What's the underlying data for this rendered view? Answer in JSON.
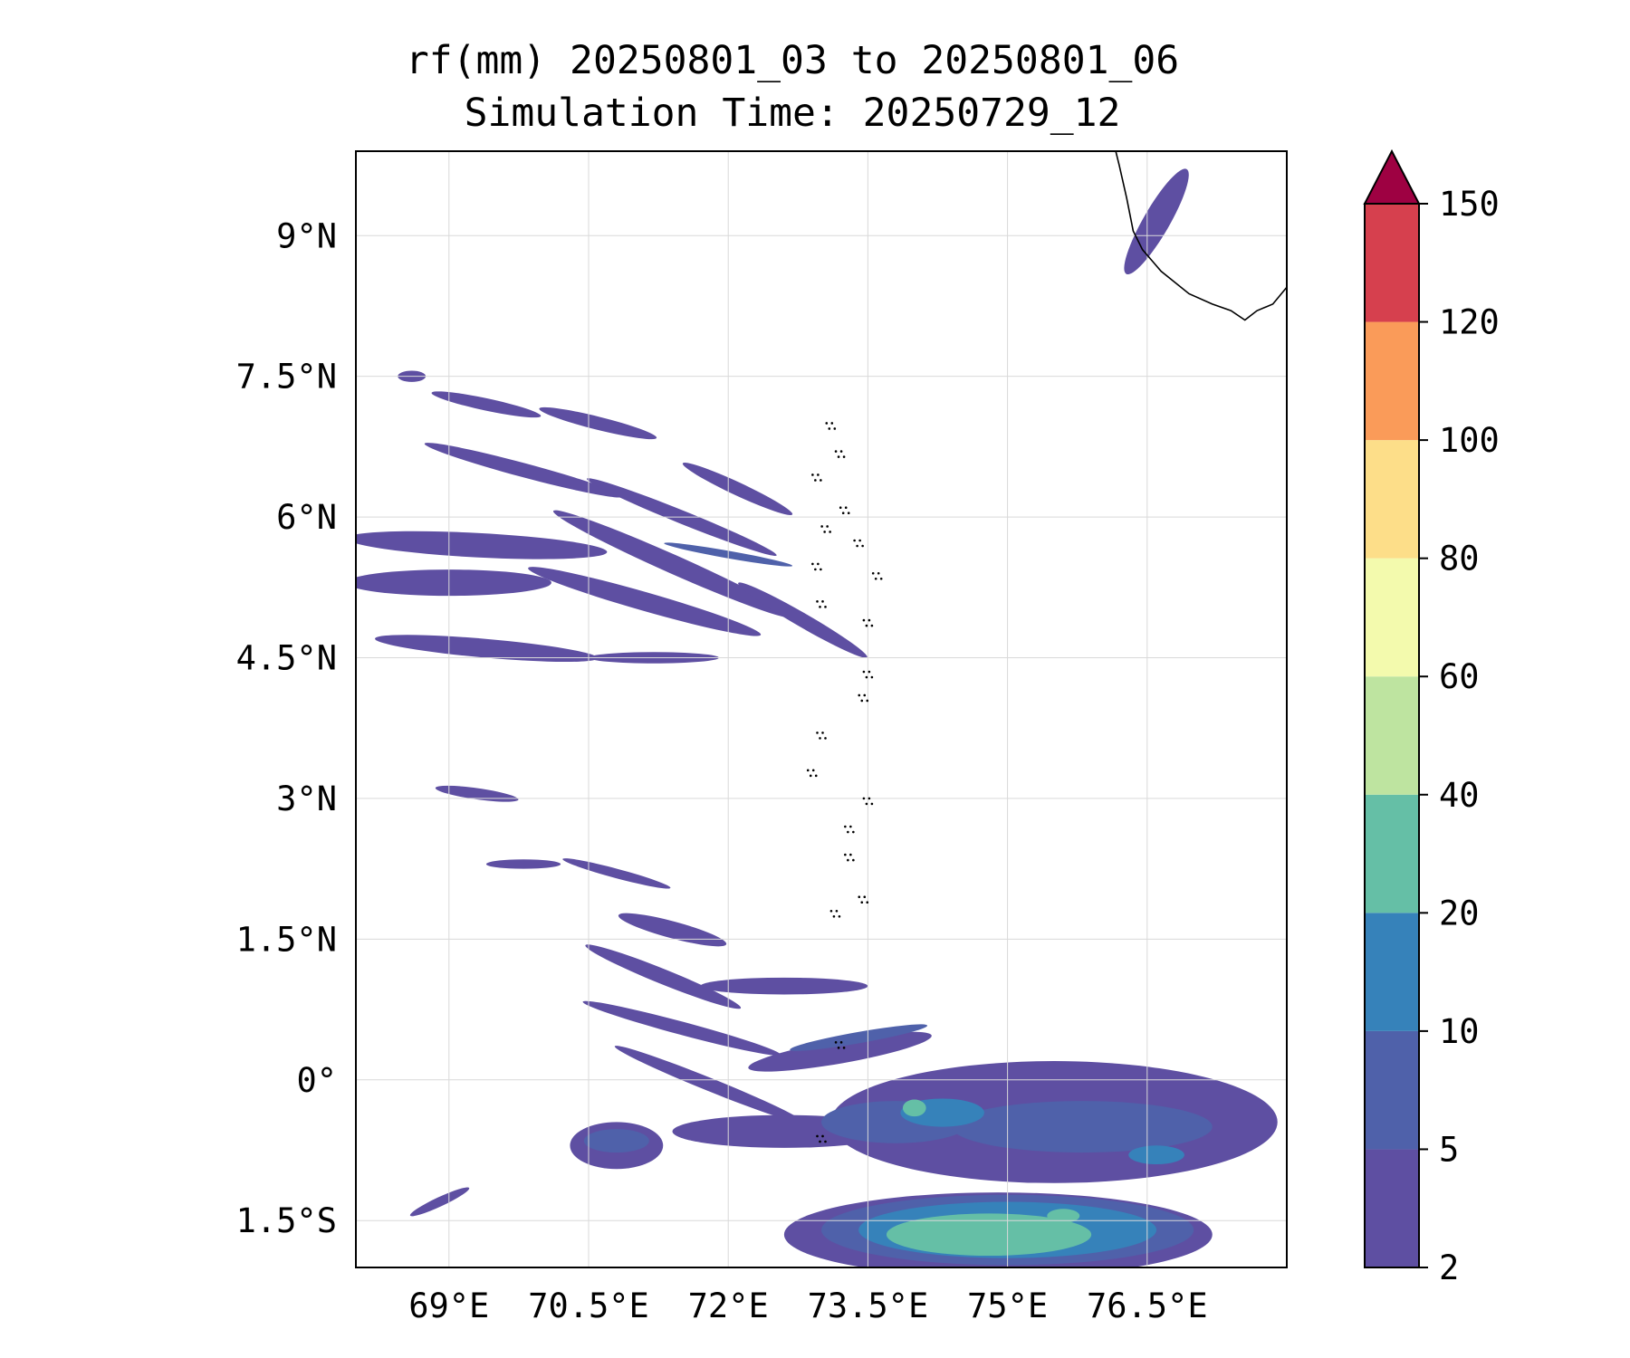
{
  "title": {
    "line1": "rf(mm) 20250801_03 to 20250801_06",
    "line2": "Simulation Time: 20250729_12"
  },
  "map": {
    "lon_range": [
      68.0,
      78.0
    ],
    "lat_range": [
      -2.0,
      9.9
    ],
    "lon_ticks": [
      {
        "value": 69.0,
        "label": "69°E"
      },
      {
        "value": 70.5,
        "label": "70.5°E"
      },
      {
        "value": 72.0,
        "label": "72°E"
      },
      {
        "value": 73.5,
        "label": "73.5°E"
      },
      {
        "value": 75.0,
        "label": "75°E"
      },
      {
        "value": 76.5,
        "label": "76.5°E"
      }
    ],
    "lat_ticks": [
      {
        "value": 9.0,
        "label": "9°N"
      },
      {
        "value": 7.5,
        "label": "7.5°N"
      },
      {
        "value": 6.0,
        "label": "6°N"
      },
      {
        "value": 4.5,
        "label": "4.5°N"
      },
      {
        "value": 3.0,
        "label": "3°N"
      },
      {
        "value": 1.5,
        "label": "1.5°N"
      },
      {
        "value": 0.0,
        "label": "0°"
      },
      {
        "value": -1.5,
        "label": "1.5°S"
      }
    ],
    "gridlines": true,
    "coastline_color": "#000000",
    "coastline_india": [
      [
        76.15,
        9.95
      ],
      [
        76.2,
        9.75
      ],
      [
        76.28,
        9.4
      ],
      [
        76.35,
        9.05
      ],
      [
        76.45,
        8.85
      ],
      [
        76.65,
        8.62
      ],
      [
        76.95,
        8.38
      ],
      [
        77.2,
        8.27
      ],
      [
        77.4,
        8.2
      ],
      [
        77.55,
        8.1
      ],
      [
        77.68,
        8.2
      ],
      [
        77.85,
        8.27
      ],
      [
        78.0,
        8.45
      ]
    ],
    "maldives_atolls": [
      [
        73.1,
        7.0
      ],
      [
        73.2,
        6.7
      ],
      [
        72.95,
        6.45
      ],
      [
        73.25,
        6.1
      ],
      [
        73.05,
        5.9
      ],
      [
        73.4,
        5.75
      ],
      [
        72.95,
        5.5
      ],
      [
        73.6,
        5.4
      ],
      [
        73.0,
        5.1
      ],
      [
        73.5,
        4.9
      ],
      [
        73.5,
        4.35
      ],
      [
        73.45,
        4.1
      ],
      [
        73.0,
        3.7
      ],
      [
        72.9,
        3.3
      ],
      [
        73.5,
        3.0
      ],
      [
        73.3,
        2.7
      ],
      [
        73.3,
        2.4
      ],
      [
        73.45,
        1.95
      ],
      [
        73.15,
        1.8
      ],
      [
        73.2,
        0.4
      ],
      [
        73.0,
        -0.6
      ]
    ]
  },
  "rain_bands": [
    {
      "level": 2,
      "c": [
        68.6,
        7.5
      ],
      "l": 0.3,
      "w": 0.12,
      "r": 0
    },
    {
      "level": 2,
      "c": [
        69.4,
        7.2
      ],
      "l": 1.2,
      "w": 0.13,
      "r": 12
    },
    {
      "level": 2,
      "c": [
        70.6,
        7.0
      ],
      "l": 1.3,
      "w": 0.14,
      "r": 14
    },
    {
      "level": 2,
      "c": [
        72.1,
        6.3
      ],
      "l": 1.3,
      "w": 0.14,
      "r": 25
    },
    {
      "level": 2,
      "c": [
        69.8,
        6.5
      ],
      "l": 2.2,
      "w": 0.15,
      "r": 15
    },
    {
      "level": 2,
      "c": [
        71.5,
        6.0
      ],
      "l": 2.2,
      "w": 0.14,
      "r": 22
    },
    {
      "level": 2,
      "c": [
        69.3,
        5.7
      ],
      "l": 2.8,
      "w": 0.26,
      "r": 3
    },
    {
      "level": 2,
      "c": [
        71.4,
        5.5
      ],
      "l": 2.8,
      "w": 0.2,
      "r": 24
    },
    {
      "level": 2,
      "c": [
        69.0,
        5.3
      ],
      "l": 2.2,
      "w": 0.28,
      "r": 0
    },
    {
      "level": 2,
      "c": [
        71.1,
        5.1
      ],
      "l": 2.6,
      "w": 0.2,
      "r": 16
    },
    {
      "level": 2,
      "c": [
        72.8,
        4.9
      ],
      "l": 1.6,
      "w": 0.15,
      "r": 30
    },
    {
      "level": 2,
      "c": [
        69.4,
        4.6
      ],
      "l": 2.4,
      "w": 0.2,
      "r": 5
    },
    {
      "level": 2,
      "c": [
        71.2,
        4.5
      ],
      "l": 1.4,
      "w": 0.12,
      "r": 0
    },
    {
      "level": 2,
      "c": [
        69.3,
        3.05
      ],
      "l": 0.9,
      "w": 0.12,
      "r": 8
    },
    {
      "level": 2,
      "c": [
        69.8,
        2.3
      ],
      "l": 0.8,
      "w": 0.1,
      "r": 0
    },
    {
      "level": 2,
      "c": [
        70.8,
        2.2
      ],
      "l": 1.2,
      "w": 0.1,
      "r": 15
    },
    {
      "level": 2,
      "c": [
        71.4,
        1.6
      ],
      "l": 1.2,
      "w": 0.18,
      "r": 15
    },
    {
      "level": 2,
      "c": [
        71.3,
        1.1
      ],
      "l": 1.8,
      "w": 0.16,
      "r": 22
    },
    {
      "level": 2,
      "c": [
        72.6,
        1.0
      ],
      "l": 1.8,
      "w": 0.18,
      "r": 0
    },
    {
      "level": 2,
      "c": [
        71.5,
        0.55
      ],
      "l": 2.2,
      "w": 0.14,
      "r": 15
    },
    {
      "level": 2,
      "c": [
        71.8,
        -0.05
      ],
      "l": 2.2,
      "w": 0.14,
      "r": 22
    },
    {
      "level": 2,
      "c": [
        70.8,
        -0.7
      ],
      "l": 1.0,
      "w": 0.5,
      "r": 0
    },
    {
      "level": 2,
      "c": [
        72.6,
        -0.55
      ],
      "l": 2.4,
      "w": 0.35,
      "r": 0
    },
    {
      "level": 2,
      "c": [
        73.2,
        0.3
      ],
      "l": 2.0,
      "w": 0.25,
      "r": -10
    },
    {
      "level": 2,
      "c": [
        75.5,
        -0.45
      ],
      "l": 4.8,
      "w": 1.3,
      "r": 0
    },
    {
      "level": 2,
      "c": [
        74.9,
        -1.65
      ],
      "l": 4.6,
      "w": 0.9,
      "r": 0
    },
    {
      "level": 2,
      "c": [
        76.6,
        9.15
      ],
      "l": 1.3,
      "w": 0.28,
      "r": -60
    },
    {
      "level": 2,
      "c": [
        68.9,
        -1.3
      ],
      "l": 0.7,
      "w": 0.1,
      "r": -25
    },
    {
      "level": 5,
      "c": [
        72.0,
        5.6
      ],
      "l": 1.4,
      "w": 0.08,
      "r": 10
    },
    {
      "level": 5,
      "c": [
        70.8,
        -0.65
      ],
      "l": 0.7,
      "w": 0.25,
      "r": 0
    },
    {
      "level": 5,
      "c": [
        73.4,
        0.45
      ],
      "l": 1.5,
      "w": 0.12,
      "r": -10
    },
    {
      "level": 5,
      "c": [
        73.8,
        -0.45
      ],
      "l": 1.6,
      "w": 0.45,
      "r": 0
    },
    {
      "level": 5,
      "c": [
        75.8,
        -0.5
      ],
      "l": 2.8,
      "w": 0.55,
      "r": 0
    },
    {
      "level": 5,
      "c": [
        75.0,
        -1.6
      ],
      "l": 4.0,
      "w": 0.75,
      "r": 0
    },
    {
      "level": 10,
      "c": [
        74.3,
        -0.35
      ],
      "l": 0.9,
      "w": 0.3,
      "r": 0
    },
    {
      "level": 10,
      "c": [
        75.0,
        -1.6
      ],
      "l": 3.2,
      "w": 0.6,
      "r": 0
    },
    {
      "level": 10,
      "c": [
        76.6,
        -0.8
      ],
      "l": 0.6,
      "w": 0.2,
      "r": 0
    },
    {
      "level": 20,
      "c": [
        74.0,
        -0.3
      ],
      "l": 0.25,
      "w": 0.18,
      "r": 0
    },
    {
      "level": 20,
      "c": [
        74.8,
        -1.65
      ],
      "l": 2.2,
      "w": 0.45,
      "r": 0
    },
    {
      "level": 20,
      "c": [
        75.6,
        -1.45
      ],
      "l": 0.35,
      "w": 0.15,
      "r": 0
    }
  ],
  "colorbar": {
    "levels": [
      "2",
      "5",
      "10",
      "20",
      "40",
      "60",
      "80",
      "100",
      "120",
      "150"
    ],
    "colors": [
      "#5e4fa2",
      "#4f61aa",
      "#3682ba",
      "#65bfa6",
      "#bee4a0",
      "#f3faad",
      "#fdde89",
      "#fa9b59",
      "#d6404e"
    ],
    "extend_color": "#9e0142"
  }
}
